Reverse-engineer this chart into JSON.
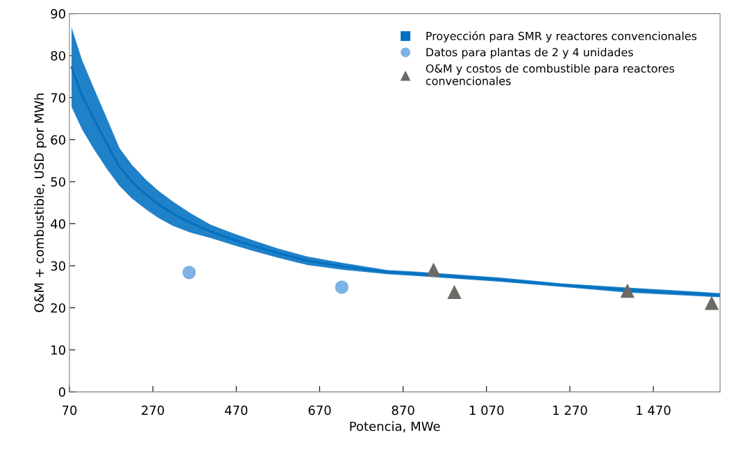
{
  "chart_data": {
    "type": "line",
    "xlabel": "Potencia, MWe",
    "ylabel": "O&M + combustible, USD por MWh",
    "xlim": [
      70,
      1630
    ],
    "xticks": [
      70,
      270,
      470,
      670,
      870,
      {
        "value": 1070,
        "label": "1 070"
      },
      {
        "value": 1270,
        "label": "1 270"
      },
      {
        "value": 1470,
        "label": "1 470"
      }
    ],
    "ylim": [
      0,
      90
    ],
    "yticks": [
      0,
      10,
      20,
      30,
      40,
      50,
      60,
      70,
      80,
      90
    ],
    "grid": false,
    "legend": "top right",
    "series": [
      {
        "name": "Proyección para SMR y reactores convencionales",
        "color": "#0070c0",
        "x": [
          75,
          100,
          127,
          160,
          190,
          220,
          255,
          285,
          318,
          360,
          408,
          460,
          512,
          570,
          640,
          730,
          832,
          900,
          1100,
          1250,
          1408,
          1630
        ],
        "values": [
          77.2,
          70.5,
          65.3,
          59.0,
          53.5,
          50.0,
          46.8,
          44.5,
          42.4,
          40.2,
          38.2,
          36.3,
          34.7,
          33.0,
          31.2,
          29.8,
          28.5,
          28.1,
          26.7,
          25.4,
          24.2,
          23.0
        ],
        "lower": [
          67.8,
          62.5,
          58,
          53.0,
          49,
          46.0,
          43.3,
          41.3,
          39.5,
          37.9,
          36.6,
          35.0,
          33.5,
          31.9,
          30.2,
          29.0,
          28.0,
          27.6,
          26.2,
          25.0,
          23.6,
          22.5
        ],
        "upper": [
          86.7,
          79.0,
          72.6,
          65.0,
          58,
          54.0,
          50.3,
          47.7,
          45.3,
          42.5,
          39.8,
          37.8,
          36,
          34.1,
          32.2,
          30.6,
          29.0,
          28.6,
          27.2,
          25.8,
          24.8,
          23.5
        ]
      },
      {
        "name": "Datos para plantas de 2 y 4 unidades",
        "type": "scatter",
        "color": "#7fb2e5",
        "marker": "circle",
        "x": [
          357,
          723
        ],
        "values": [
          28.4,
          24.9
        ]
      },
      {
        "name": "O&M y costos de combustible para reactores\nconvencionales",
        "type": "scatter",
        "color": "#6d6a66",
        "marker": "triangle",
        "x": [
          943,
          993,
          1408,
          1610
        ],
        "values": [
          29.0,
          23.7,
          24.0,
          21.1
        ]
      }
    ]
  }
}
